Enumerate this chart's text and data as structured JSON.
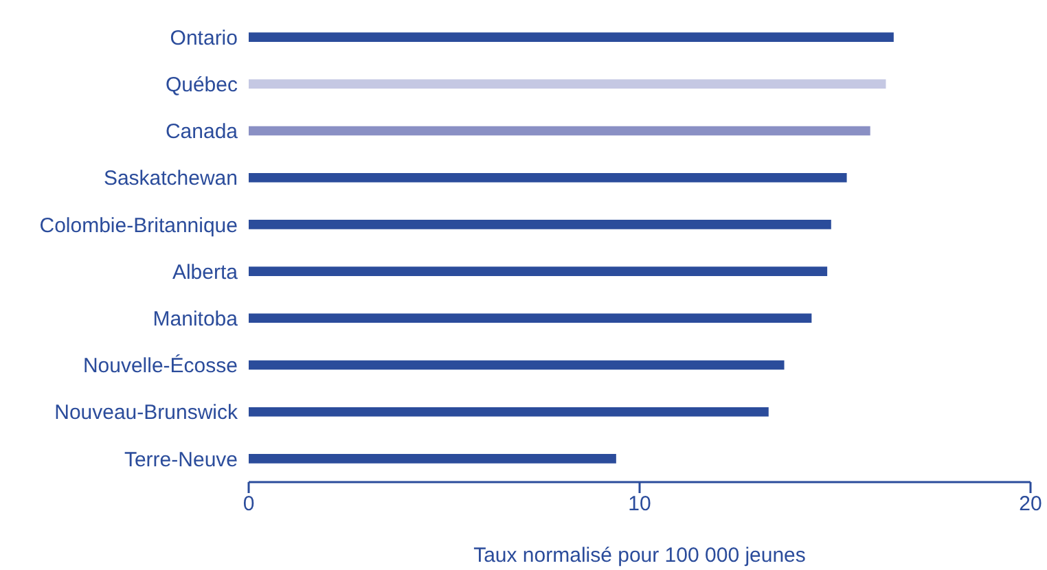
{
  "chart_data": {
    "type": "bar",
    "orientation": "horizontal",
    "xlabel": "Taux normalisé pour 100 000 jeunes",
    "categories": [
      "Ontario",
      "Québec",
      "Canada",
      "Saskatchewan",
      "Colombie-Britannique",
      "Alberta",
      "Manitoba",
      "Nouvelle-Écosse",
      "Nouveau-Brunswick",
      "Terre-Neuve"
    ],
    "values": [
      16.5,
      16.3,
      15.9,
      15.3,
      14.9,
      14.8,
      14.4,
      13.7,
      13.3,
      9.4
    ],
    "colors": [
      "#2b4c9b",
      "#c5c8e3",
      "#8a90c4",
      "#2b4c9b",
      "#2b4c9b",
      "#2b4c9b",
      "#2b4c9b",
      "#2b4c9b",
      "#2b4c9b",
      "#2b4c9b"
    ],
    "xlim": [
      0,
      20
    ],
    "xticks": [
      0,
      10,
      20
    ],
    "grid": false,
    "legend": false
  }
}
